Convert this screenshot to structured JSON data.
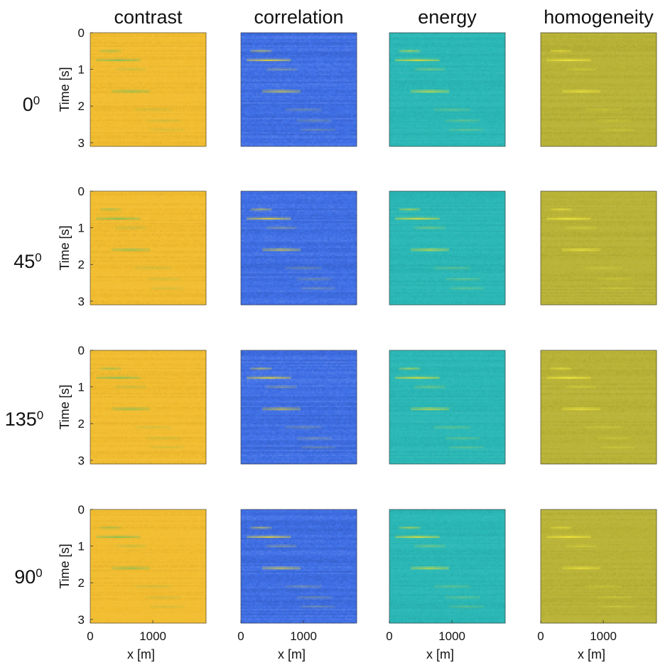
{
  "chart_data": {
    "type": "heatmap",
    "grid": {
      "rows": 4,
      "cols": 4
    },
    "column_titles": [
      "contrast",
      "correlation",
      "energy",
      "homogeneity"
    ],
    "row_labels": [
      {
        "main": "0",
        "sup": "0"
      },
      {
        "main": "45",
        "sup": "0"
      },
      {
        "main": "135",
        "sup": "0"
      },
      {
        "main": "90",
        "sup": "0"
      }
    ],
    "ylabel": "Time [s]",
    "xlabel": "x [m]",
    "y_ticks": [
      "0",
      "1",
      "2",
      "3"
    ],
    "x_ticks": [
      "0",
      "1000"
    ],
    "y_tick_values": [
      0,
      1,
      2,
      3
    ],
    "x_tick_values": [
      0,
      1000
    ],
    "ylim": [
      0,
      3.1
    ],
    "xlim": [
      0,
      1850
    ],
    "y_reversed": true,
    "column_base_colors": [
      "#f2bd30",
      "#3f6fe6",
      "#2ab8b6",
      "#b9b337"
    ],
    "features": [
      {
        "t": 0.5,
        "x_start": 150,
        "x_end": 500,
        "strength": 0.7
      },
      {
        "t": 0.75,
        "x_start": 100,
        "x_end": 800,
        "strength": 1.0
      },
      {
        "t": 1.0,
        "x_start": 400,
        "x_end": 900,
        "strength": 0.45
      },
      {
        "t": 1.6,
        "x_start": 350,
        "x_end": 950,
        "strength": 1.0
      },
      {
        "t": 2.1,
        "x_start": 700,
        "x_end": 1300,
        "strength": 0.35
      },
      {
        "t": 2.4,
        "x_start": 900,
        "x_end": 1450,
        "strength": 0.35
      },
      {
        "t": 2.65,
        "x_start": 950,
        "x_end": 1500,
        "strength": 0.3
      }
    ]
  }
}
